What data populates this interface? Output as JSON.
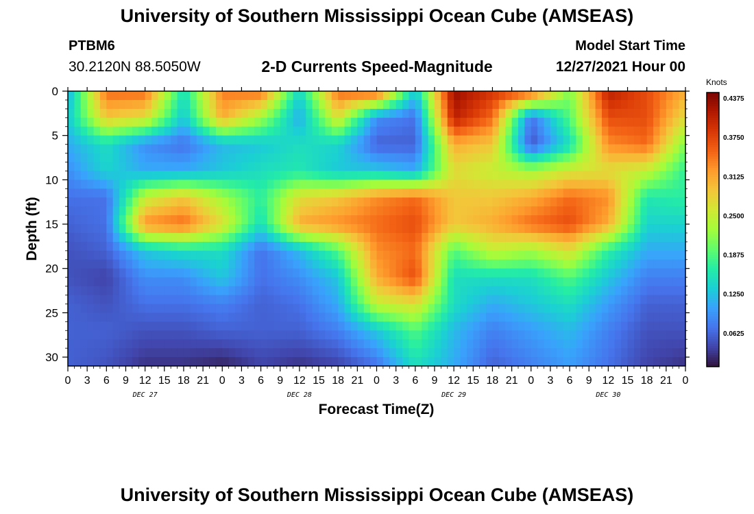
{
  "header": {
    "title": "University of Southern Mississippi Ocean Cube (AMSEAS)",
    "station_id": "PTBM6",
    "station_coords": "30.2120N  88.5050W",
    "plot_title": "2-D Currents Speed-Magnitude",
    "model_label": "Model Start Time",
    "model_time": "12/27/2021 Hour 00"
  },
  "footer": {
    "title": "University of Southern Mississippi Ocean Cube (AMSEAS)"
  },
  "chart_data": {
    "type": "heatmap",
    "title": "2-D Currents Speed-Magnitude",
    "xlabel": "Forecast Time(Z)",
    "ylabel": "Depth (ft)",
    "x_hours": [
      0,
      6,
      12,
      18,
      24,
      30,
      36,
      42,
      48,
      54,
      60,
      66,
      72,
      78,
      84,
      90,
      96
    ],
    "x_tick_labels": [
      "0",
      "3",
      "6",
      "9",
      "12",
      "15",
      "18",
      "21",
      "0",
      "3",
      "6",
      "9",
      "12",
      "15",
      "18",
      "21",
      "0",
      "3",
      "6",
      "9",
      "12",
      "15",
      "18",
      "21",
      "0",
      "3",
      "6",
      "9",
      "12",
      "15",
      "18",
      "21",
      "0"
    ],
    "date_labels": [
      {
        "label": "DEC 27",
        "hour": 12
      },
      {
        "label": "DEC 28",
        "hour": 36
      },
      {
        "label": "DEC 29",
        "hour": 60
      },
      {
        "label": "DEC 30",
        "hour": 84
      }
    ],
    "xlim": [
      0,
      96
    ],
    "y_depths": [
      0,
      3,
      6,
      9,
      12,
      15,
      18,
      21,
      24,
      27,
      31
    ],
    "y_tick_labels": [
      "0",
      "5",
      "10",
      "15",
      "20",
      "25",
      "30"
    ],
    "y_tick_values": [
      0,
      5,
      10,
      15,
      20,
      25,
      30
    ],
    "ylim": [
      0,
      31
    ],
    "values": [
      [
        0.1,
        0.34,
        0.34,
        0.14,
        0.33,
        0.34,
        0.13,
        0.34,
        0.36,
        0.12,
        0.42,
        0.38,
        0.36,
        0.2,
        0.4,
        0.36,
        0.3
      ],
      [
        0.12,
        0.28,
        0.26,
        0.12,
        0.3,
        0.22,
        0.1,
        0.26,
        0.08,
        0.06,
        0.4,
        0.34,
        0.06,
        0.18,
        0.36,
        0.36,
        0.26
      ],
      [
        0.1,
        0.14,
        0.08,
        0.06,
        0.11,
        0.12,
        0.14,
        0.13,
        0.05,
        0.05,
        0.3,
        0.28,
        0.04,
        0.14,
        0.32,
        0.34,
        0.2
      ],
      [
        0.08,
        0.13,
        0.1,
        0.1,
        0.12,
        0.14,
        0.15,
        0.12,
        0.12,
        0.1,
        0.26,
        0.24,
        0.22,
        0.25,
        0.26,
        0.24,
        0.16
      ],
      [
        0.06,
        0.06,
        0.24,
        0.28,
        0.22,
        0.16,
        0.26,
        0.28,
        0.32,
        0.34,
        0.28,
        0.28,
        0.3,
        0.34,
        0.32,
        0.15,
        0.16
      ],
      [
        0.05,
        0.06,
        0.32,
        0.34,
        0.26,
        0.14,
        0.3,
        0.32,
        0.34,
        0.36,
        0.28,
        0.3,
        0.34,
        0.36,
        0.3,
        0.13,
        0.13
      ],
      [
        0.04,
        0.05,
        0.12,
        0.14,
        0.14,
        0.06,
        0.11,
        0.18,
        0.32,
        0.34,
        0.18,
        0.24,
        0.22,
        0.26,
        0.16,
        0.1,
        0.1
      ],
      [
        0.04,
        0.03,
        0.08,
        0.08,
        0.12,
        0.06,
        0.08,
        0.12,
        0.3,
        0.36,
        0.14,
        0.14,
        0.14,
        0.18,
        0.12,
        0.07,
        0.07
      ],
      [
        0.05,
        0.04,
        0.06,
        0.06,
        0.07,
        0.05,
        0.06,
        0.1,
        0.24,
        0.26,
        0.14,
        0.1,
        0.12,
        0.14,
        0.09,
        0.05,
        0.05
      ],
      [
        0.05,
        0.05,
        0.04,
        0.04,
        0.05,
        0.05,
        0.05,
        0.07,
        0.12,
        0.18,
        0.11,
        0.07,
        0.09,
        0.11,
        0.07,
        0.04,
        0.04
      ],
      [
        0.05,
        0.04,
        0.02,
        0.02,
        0.01,
        0.03,
        0.02,
        0.03,
        0.06,
        0.14,
        0.1,
        0.05,
        0.07,
        0.09,
        0.06,
        0.03,
        0.02
      ]
    ],
    "colorbar": {
      "unit_label": "Knots",
      "min": 0,
      "max": 0.4375,
      "tick_values": [
        0.4375,
        0.375,
        0.3125,
        0.25,
        0.1875,
        0.125,
        0.0625
      ],
      "tick_labels": [
        "0.4375",
        "0.3750",
        "0.3125",
        "0.2500",
        "0.1875",
        "0.1250",
        "0.0625"
      ],
      "colormap": [
        "#30123b",
        "#4145ab",
        "#4675ed",
        "#39a2fc",
        "#1bcfd4",
        "#24eca6",
        "#61fc6c",
        "#a4fc3b",
        "#d1e834",
        "#f3c63a",
        "#fe9b2d",
        "#f36315",
        "#d93806",
        "#b11901",
        "#7a0402"
      ]
    }
  }
}
